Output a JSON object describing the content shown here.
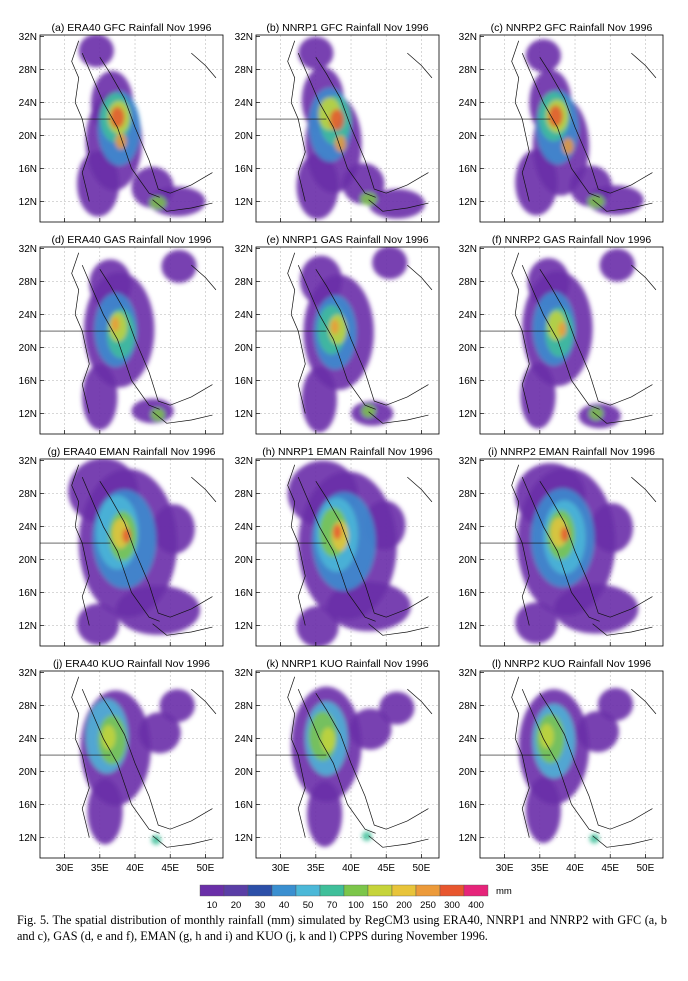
{
  "figure": {
    "panels": [
      {
        "title": "(a) ERA40 GFC Rainfall Nov 1996",
        "reanalysis": "ERA40",
        "scheme": "GFC"
      },
      {
        "title": "(b) NNRP1 GFC Rainfall Nov 1996",
        "reanalysis": "NNRP1",
        "scheme": "GFC"
      },
      {
        "title": "(c) NNRP2 GFC Rainfall Nov 1996",
        "reanalysis": "NNRP2",
        "scheme": "GFC"
      },
      {
        "title": "(d) ERA40 GAS Rainfall Nov 1996",
        "reanalysis": "ERA40",
        "scheme": "GAS"
      },
      {
        "title": "(e) NNRP1 GAS Rainfall Nov 1996",
        "reanalysis": "NNRP1",
        "scheme": "GAS"
      },
      {
        "title": "(f) NNRP2 GAS Rainfall Nov 1996",
        "reanalysis": "NNRP2",
        "scheme": "GAS"
      },
      {
        "title": "(g) ERA40 EMAN Rainfall Nov 1996",
        "reanalysis": "ERA40",
        "scheme": "EMAN"
      },
      {
        "title": "(h) NNRP1 EMAN Rainfall Nov 1996",
        "reanalysis": "NNRP1",
        "scheme": "EMAN"
      },
      {
        "title": "(i) NNRP2 EMAN Rainfall Nov 1996",
        "reanalysis": "NNRP2",
        "scheme": "EMAN"
      },
      {
        "title": "(j) ERA40 KUO Rainfall Nov 1996",
        "reanalysis": "ERA40",
        "scheme": "KUO"
      },
      {
        "title": "(k) NNRP1 KUO Rainfall Nov 1996",
        "reanalysis": "NNRP1",
        "scheme": "KUO"
      },
      {
        "title": "(l) NNRP2 KUO Rainfall Nov 1996",
        "reanalysis": "NNRP2",
        "scheme": "KUO"
      }
    ],
    "lat_labels": [
      "32N",
      "28N",
      "24N",
      "20N",
      "16N",
      "12N"
    ],
    "lat_values": [
      32,
      28,
      24,
      20,
      16,
      12
    ],
    "lon_labels": [
      "30E",
      "35E",
      "40E",
      "45E",
      "50E"
    ],
    "lon_values": [
      30,
      35,
      40,
      45,
      50
    ],
    "colorbar": {
      "unit": "mm",
      "ticks": [
        "10",
        "20",
        "30",
        "40",
        "50",
        "70",
        "100",
        "150",
        "200",
        "250",
        "300",
        "400"
      ],
      "colors": [
        "#6a2fa8",
        "#5a3ea6",
        "#2c4fa8",
        "#3a8fd0",
        "#4bb8d8",
        "#3fbf9a",
        "#7cc64a",
        "#c6d43a",
        "#e8c43a",
        "#ec9a3a",
        "#e8562e",
        "#e6247a"
      ]
    },
    "caption": "Fig. 5. The spatial distribution of monthly rainfall (mm) simulated by RegCM3 using ERA40, NNRP1 and NNRP2 with GFC (a, b and c), GAS (d, e and f), EMAN (g, h and i) and KUO (j, k and l) CPPS during November 1996."
  }
}
